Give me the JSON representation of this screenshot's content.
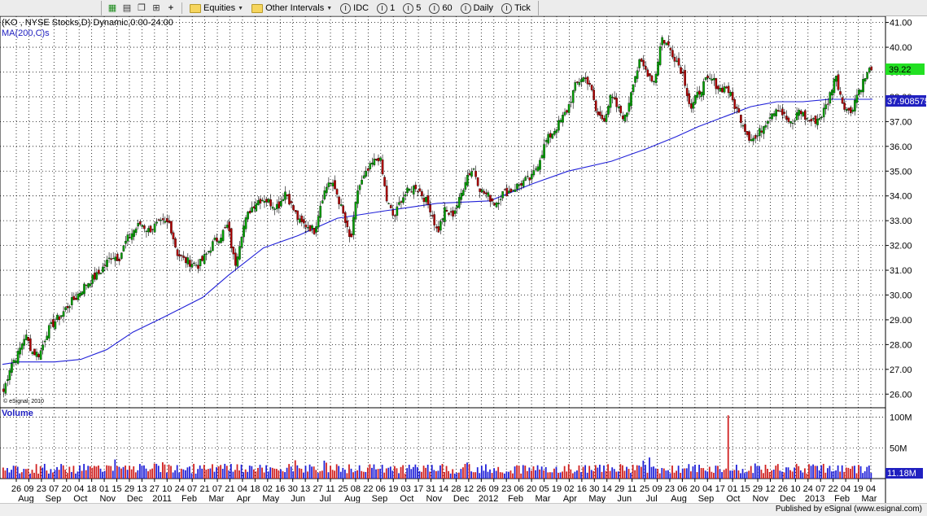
{
  "toolbar": {
    "equities_label": "Equities",
    "other_intervals_label": "Other Intervals",
    "intervals": [
      {
        "label": "IDC",
        "icon": "I"
      },
      {
        "label": "1",
        "icon": "I"
      },
      {
        "label": "5",
        "icon": "I"
      },
      {
        "label": "60",
        "icon": "I"
      },
      {
        "label": "Daily",
        "icon": "I"
      },
      {
        "label": "Tick",
        "icon": "I"
      }
    ]
  },
  "chart_header": {
    "symbol_line": "(KO , NYSE Stocks,D) Dynamic,0:00-24:00",
    "ma_line": "MA(200,C)s",
    "copyright": "© eSignal, 2010",
    "volume_label": "Volume"
  },
  "footer": {
    "text": "Published by eSignal (www.esignal.com)"
  },
  "colors": {
    "up_candle": "#00a000",
    "down_candle": "#b00000",
    "ma_line": "#2020d8",
    "volume_up": "#2020d8",
    "volume_down": "#d02020",
    "last_price_box": "#22e022",
    "ma_box": "#2020c0",
    "grid": "#000000"
  },
  "chart_data": {
    "type": "candlestick",
    "title": "(KO , NYSE Stocks,D) Dynamic,0:00-24:00",
    "price_axis": {
      "ylim": [
        25.45,
        41.25
      ],
      "ticks": [
        "26.00",
        "27.00",
        "28.00",
        "29.00",
        "30.00",
        "31.00",
        "32.00",
        "33.00",
        "34.00",
        "35.00",
        "36.00",
        "37.00",
        "38.00",
        "39.00",
        "40.00",
        "41.00"
      ],
      "last_price": "39.22",
      "ma_value": "37.908575"
    },
    "volume_axis": {
      "ticks": [
        "100M",
        "50M"
      ],
      "last_volume": "11.18M",
      "ylim": [
        0,
        110
      ]
    },
    "x_day_ticks": [
      "26",
      "09",
      "23",
      "07",
      "20",
      "04",
      "18",
      "01",
      "15",
      "29",
      "13",
      "27",
      "10",
      "24",
      "07",
      "21",
      "07",
      "21",
      "04",
      "18",
      "02",
      "16",
      "30",
      "13",
      "27",
      "11",
      "25",
      "08",
      "22",
      "06",
      "19",
      "03",
      "17",
      "31",
      "14",
      "28",
      "12",
      "26",
      "09",
      "23",
      "06",
      "20",
      "05",
      "19",
      "02",
      "16",
      "30",
      "14",
      "29",
      "11",
      "25",
      "09",
      "23",
      "06",
      "20",
      "04",
      "17",
      "01",
      "15",
      "29",
      "12",
      "26",
      "10",
      "24",
      "07",
      "22",
      "04",
      "19",
      "04"
    ],
    "x_month_ticks": [
      "Aug",
      "Sep",
      "Oct",
      "Nov",
      "Dec",
      "2011",
      "Feb",
      "Mar",
      "Apr",
      "May",
      "Jun",
      "Jul",
      "Aug",
      "Sep",
      "Oct",
      "Nov",
      "Dec",
      "2012",
      "Feb",
      "Mar",
      "Apr",
      "May",
      "Jun",
      "Jul",
      "Aug",
      "Sep",
      "Oct",
      "Nov",
      "Dec",
      "2013",
      "Feb",
      "Mar"
    ],
    "price_series": [
      {
        "name": "KO",
        "type": "candlestick",
        "closes": [
          26.1,
          27.2,
          27.6,
          28.4,
          27.7,
          27.6,
          28.5,
          28.9,
          29.2,
          29.6,
          29.9,
          30.3,
          30.6,
          30.8,
          31.2,
          31.6,
          31.5,
          32.2,
          32.6,
          32.9,
          32.6,
          32.8,
          32.9,
          32.9,
          31.7,
          31.4,
          31.3,
          31.2,
          31.6,
          32.1,
          32.4,
          32.8,
          31.2,
          32.6,
          33.4,
          33.8,
          33.9,
          33.7,
          33.6,
          34.2,
          33.5,
          32.9,
          32.8,
          32.6,
          33.9,
          34.6,
          34.2,
          33.2,
          32.1,
          34.3,
          34.8,
          35.3,
          35.6,
          33.8,
          33.1,
          33.9,
          34.2,
          34.4,
          34.0,
          33.5,
          32.5,
          33.4,
          33.2,
          33.8,
          34.8,
          35.1,
          34.2,
          34.0,
          33.7,
          34.1,
          34.2,
          34.4,
          34.6,
          34.7,
          35.4,
          36.2,
          36.6,
          37.0,
          37.5,
          38.4,
          38.8,
          38.6,
          37.3,
          37.1,
          38.0,
          37.5,
          37.1,
          38.6,
          39.4,
          39.0,
          38.6,
          40.4,
          40.0,
          39.5,
          38.9,
          37.5,
          38.1,
          38.6,
          38.7,
          38.3,
          38.4,
          37.7,
          37.1,
          36.4,
          36.3,
          36.8,
          37.3,
          37.6,
          37.2,
          36.8,
          37.5,
          37.1,
          37.0,
          37.2,
          37.8,
          38.9,
          37.8,
          37.3,
          38.1,
          38.7,
          39.22
        ]
      },
      {
        "name": "MA(200,C)s",
        "type": "line",
        "x": [
          0.0,
          0.018,
          0.06,
          0.09,
          0.12,
          0.15,
          0.185,
          0.23,
          0.26,
          0.3,
          0.34,
          0.385,
          0.44,
          0.5,
          0.56,
          0.61,
          0.65,
          0.7,
          0.74,
          0.775,
          0.8,
          0.83,
          0.86,
          0.89,
          0.92,
          0.95,
          1.0
        ],
        "values": [
          27.2,
          27.3,
          27.3,
          27.4,
          27.8,
          28.5,
          29.1,
          29.9,
          30.8,
          31.9,
          32.4,
          33.1,
          33.4,
          33.7,
          33.8,
          34.5,
          35.0,
          35.4,
          35.9,
          36.4,
          36.8,
          37.2,
          37.6,
          37.8,
          37.8,
          37.9,
          37.9
        ]
      }
    ],
    "volume_series": {
      "name": "Volume",
      "spike_value": 103,
      "spike_position": 0.835,
      "typical_range": [
        8,
        24
      ]
    }
  }
}
